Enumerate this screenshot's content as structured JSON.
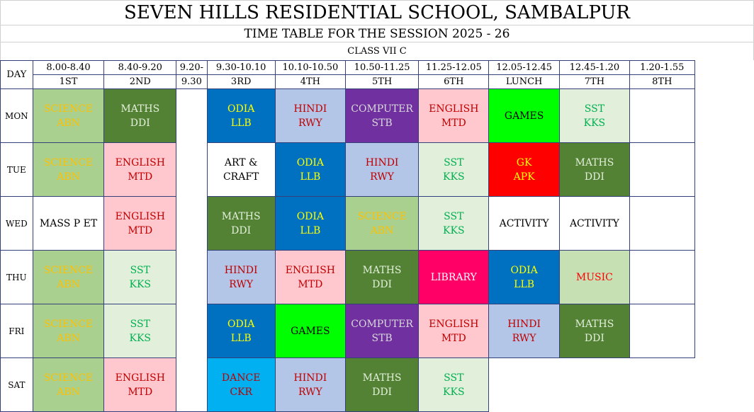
{
  "title": "SEVEN HILLS RESIDENTIAL SCHOOL, SAMBALPUR",
  "session": "TIME TABLE FOR THE SESSION 2025 - 26",
  "class_name": "CLASS VII C",
  "day_header": "DAY",
  "times": [
    "8.00-8.40",
    "8.40-9.20",
    "9.20-9.30",
    "9.30-10.10",
    "10.10-10.50",
    "10.50-11.25",
    "11.25-12.05",
    "12.05-12.45",
    "12.45-1.20",
    "1.20-1.55"
  ],
  "period_names": [
    "1ST",
    "2ND",
    "",
    "3RD",
    "4TH",
    "5TH",
    "6TH",
    "LUNCH",
    "7TH",
    "8TH"
  ],
  "break_time_top": "9.20-",
  "break_time_bottom": "9.30",
  "colors": {
    "science": {
      "bg": "#a9d08e",
      "fg": "#ffc000"
    },
    "maths": {
      "bg": "#548235",
      "fg": "#e2efda"
    },
    "odia": {
      "bg": "#0070c0",
      "fg": "#ffff00"
    },
    "hindi": {
      "bg": "#b4c6e7",
      "fg": "#c00000"
    },
    "computer": {
      "bg": "#7030a0",
      "fg": "#d9d9d9"
    },
    "english": {
      "bg": "#ffc7ce",
      "fg": "#c00000"
    },
    "games": {
      "bg": "#00ff00",
      "fg": "#000000"
    },
    "sst": {
      "bg": "#e2efda",
      "fg": "#00b050"
    },
    "gk": {
      "bg": "#ff0000",
      "fg": "#ffff00"
    },
    "library": {
      "bg": "#ff0066",
      "fg": "#ffffff"
    },
    "music": {
      "bg": "#c6e0b4",
      "fg": "#ff0000"
    },
    "dance": {
      "bg": "#00b0f0",
      "fg": "#c00000"
    },
    "plain": {
      "bg": "#ffffff",
      "fg": "#000000"
    }
  },
  "days": [
    {
      "day": "MON",
      "cells": [
        {
          "lines": [
            "SCIENCE",
            "ABN"
          ],
          "style": "science"
        },
        {
          "lines": [
            "MATHS",
            "DDI"
          ],
          "style": "maths"
        },
        {
          "lines": [
            "ODIA",
            "LLB"
          ],
          "style": "odia"
        },
        {
          "lines": [
            "HINDI",
            "RWY"
          ],
          "style": "hindi"
        },
        {
          "lines": [
            "COMPUTER",
            "STB"
          ],
          "style": "computer"
        },
        {
          "lines": [
            "ENGLISH",
            "MTD"
          ],
          "style": "english"
        },
        {
          "lines": [
            "GAMES"
          ],
          "style": "games"
        },
        {
          "lines": [
            "SST",
            "KKS"
          ],
          "style": "sst"
        },
        {
          "lines": [],
          "style": "plain"
        }
      ]
    },
    {
      "day": "TUE",
      "cells": [
        {
          "lines": [
            "SCIENCE",
            "ABN"
          ],
          "style": "science"
        },
        {
          "lines": [
            "ENGLISH",
            "MTD"
          ],
          "style": "english"
        },
        {
          "lines": [
            "ART &",
            "CRAFT"
          ],
          "style": "plain"
        },
        {
          "lines": [
            "ODIA",
            "LLB"
          ],
          "style": "odia"
        },
        {
          "lines": [
            "HINDI",
            "RWY"
          ],
          "style": "hindi"
        },
        {
          "lines": [
            "SST",
            "KKS"
          ],
          "style": "sst"
        },
        {
          "lines": [
            "GK",
            "APK"
          ],
          "style": "gk"
        },
        {
          "lines": [
            "MATHS",
            "DDI"
          ],
          "style": "maths"
        },
        {
          "lines": [],
          "style": "plain"
        }
      ]
    },
    {
      "day": "WED",
      "cells": [
        {
          "lines": [
            "MASS P ET"
          ],
          "style": "plain"
        },
        {
          "lines": [
            "ENGLISH",
            "MTD"
          ],
          "style": "english"
        },
        {
          "lines": [
            "MATHS",
            "DDI"
          ],
          "style": "maths"
        },
        {
          "lines": [
            "ODIA",
            "LLB"
          ],
          "style": "odia"
        },
        {
          "lines": [
            "SCIENCE",
            "ABN"
          ],
          "style": "science"
        },
        {
          "lines": [
            "SST",
            "KKS"
          ],
          "style": "sst"
        },
        {
          "lines": [
            "ACTIVITY"
          ],
          "style": "plain"
        },
        {
          "lines": [
            "ACTIVITY"
          ],
          "style": "plain"
        },
        {
          "lines": [],
          "style": "plain"
        }
      ]
    },
    {
      "day": "THU",
      "cells": [
        {
          "lines": [
            "SCIENCE",
            "ABN"
          ],
          "style": "science"
        },
        {
          "lines": [
            "SST",
            "KKS"
          ],
          "style": "sst"
        },
        {
          "lines": [
            "HINDI",
            "RWY"
          ],
          "style": "hindi"
        },
        {
          "lines": [
            "ENGLISH",
            "MTD"
          ],
          "style": "english"
        },
        {
          "lines": [
            "MATHS",
            "DDI"
          ],
          "style": "maths"
        },
        {
          "lines": [
            "LIBRARY"
          ],
          "style": "library"
        },
        {
          "lines": [
            "ODIA",
            "LLB"
          ],
          "style": "odia"
        },
        {
          "lines": [
            "MUSIC"
          ],
          "style": "music"
        },
        {
          "lines": [],
          "style": "plain"
        }
      ]
    },
    {
      "day": "FRI",
      "cells": [
        {
          "lines": [
            "SCIENCE",
            "ABN"
          ],
          "style": "science"
        },
        {
          "lines": [
            "SST",
            "KKS"
          ],
          "style": "sst"
        },
        {
          "lines": [
            "ODIA",
            "LLB"
          ],
          "style": "odia"
        },
        {
          "lines": [
            "GAMES"
          ],
          "style": "games"
        },
        {
          "lines": [
            "COMPUTER",
            "STB"
          ],
          "style": "computer"
        },
        {
          "lines": [
            "ENGLISH",
            "MTD"
          ],
          "style": "english"
        },
        {
          "lines": [
            "HINDI",
            "RWY"
          ],
          "style": "hindi"
        },
        {
          "lines": [
            "MATHS",
            "DDI"
          ],
          "style": "maths"
        },
        {
          "lines": [],
          "style": "plain"
        }
      ]
    },
    {
      "day": "SAT",
      "cells": [
        {
          "lines": [
            "SCIENCE",
            "ABN"
          ],
          "style": "science"
        },
        {
          "lines": [
            "ENGLISH",
            "MTD"
          ],
          "style": "english"
        },
        {
          "lines": [
            "DANCE",
            "CKR"
          ],
          "style": "dance"
        },
        {
          "lines": [
            "HINDI",
            "RWY"
          ],
          "style": "hindi"
        },
        {
          "lines": [
            "MATHS",
            "DDI"
          ],
          "style": "maths"
        },
        {
          "lines": [
            "SST",
            "KKS"
          ],
          "style": "sst"
        }
      ]
    }
  ]
}
